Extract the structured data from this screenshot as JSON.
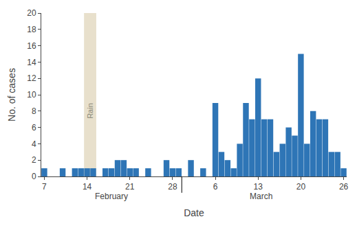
{
  "chart_data": {
    "type": "bar",
    "xlabel": "Date",
    "ylabel": "No. of cases",
    "categories": [
      "7",
      null,
      null,
      null,
      null,
      null,
      null,
      "14",
      null,
      null,
      null,
      null,
      null,
      null,
      "21",
      null,
      null,
      null,
      null,
      null,
      null,
      "28",
      null,
      null,
      null,
      null,
      null,
      null,
      "6",
      null,
      null,
      null,
      null,
      null,
      null,
      "13",
      null,
      null,
      null,
      null,
      null,
      null,
      "20",
      null,
      null,
      null,
      null,
      null,
      null,
      "26"
    ],
    "values": [
      1,
      0,
      0,
      1,
      0,
      1,
      1,
      1,
      1,
      0,
      1,
      1,
      2,
      2,
      1,
      1,
      0,
      1,
      0,
      0,
      2,
      1,
      1,
      0,
      2,
      0,
      1,
      0,
      9,
      3,
      2,
      1,
      4,
      9,
      7,
      12,
      7,
      7,
      3,
      4,
      6,
      5,
      15,
      4,
      8,
      7,
      7,
      3,
      3,
      1
    ],
    "color": "#2E75B6",
    "ylim": [
      0,
      20
    ],
    "yticks": [
      0,
      2,
      4,
      6,
      8,
      10,
      12,
      14,
      16,
      18,
      20
    ],
    "grid": false,
    "annotations": [
      {
        "text": "Rain",
        "span": [
          7,
          8
        ],
        "y": 8,
        "color": "#e8e0cc"
      },
      {
        "text": "February",
        "span": [
          0,
          22
        ]
      },
      {
        "text": "March",
        "span": [
          23,
          48
        ]
      }
    ]
  }
}
